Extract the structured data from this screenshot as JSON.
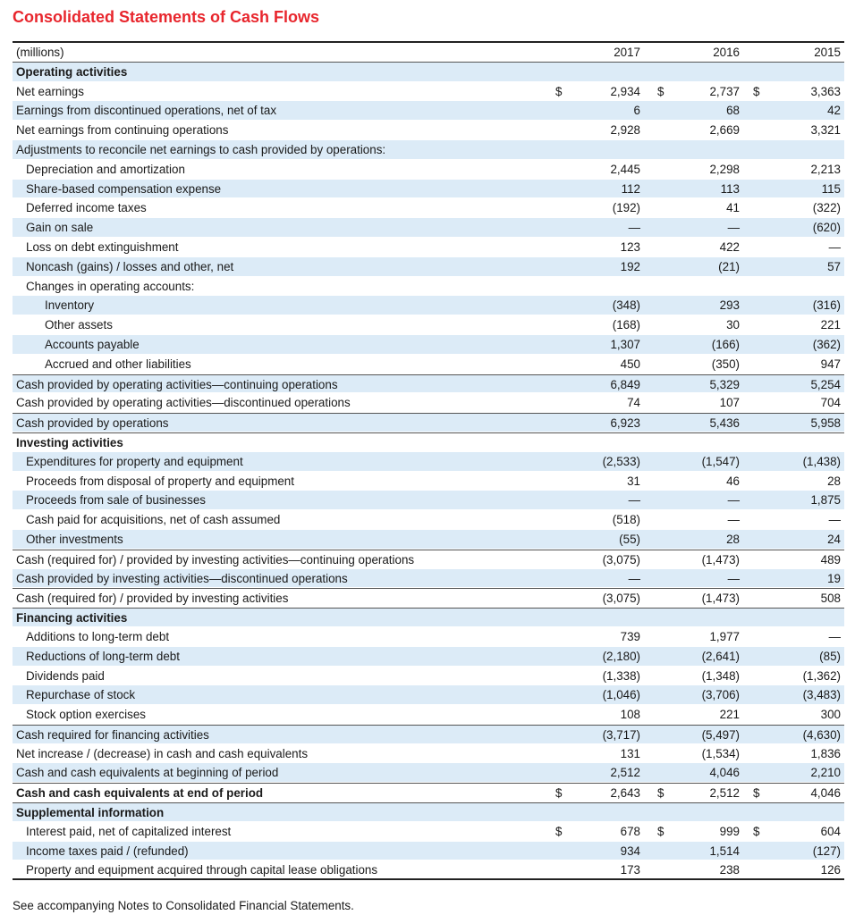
{
  "title": "Consolidated Statements of Cash Flows",
  "header": {
    "label": "(millions)",
    "years": [
      "2017",
      "2016",
      "2015"
    ]
  },
  "rows": [
    {
      "label": "Operating activities",
      "bold": true,
      "indent": 0,
      "values": [
        "",
        "",
        ""
      ]
    },
    {
      "label": "Net earnings",
      "indent": 0,
      "sym": [
        "$",
        "$",
        "$"
      ],
      "values": [
        "2,934",
        "2,737",
        "3,363"
      ]
    },
    {
      "label": "Earnings from discontinued operations, net of tax",
      "indent": 0,
      "values": [
        "6",
        "68",
        "42"
      ]
    },
    {
      "label": "Net earnings from continuing operations",
      "indent": 0,
      "values": [
        "2,928",
        "2,669",
        "3,321"
      ]
    },
    {
      "label": "Adjustments to reconcile net earnings to cash provided by operations:",
      "indent": 0,
      "values": [
        "",
        "",
        ""
      ]
    },
    {
      "label": "Depreciation and amortization",
      "indent": 1,
      "values": [
        "2,445",
        "2,298",
        "2,213"
      ]
    },
    {
      "label": "Share-based compensation expense",
      "indent": 1,
      "values": [
        "112",
        "113",
        "115"
      ]
    },
    {
      "label": "Deferred income taxes",
      "indent": 1,
      "values": [
        "(192)",
        "41",
        "(322)"
      ]
    },
    {
      "label": "Gain on sale",
      "indent": 1,
      "values": [
        "—",
        "—",
        "(620)"
      ]
    },
    {
      "label": "Loss on debt extinguishment",
      "indent": 1,
      "values": [
        "123",
        "422",
        "—"
      ]
    },
    {
      "label": "Noncash (gains) / losses and other, net",
      "indent": 1,
      "values": [
        "192",
        "(21)",
        "57"
      ]
    },
    {
      "label": "Changes in operating accounts:",
      "indent": 1,
      "values": [
        "",
        "",
        ""
      ]
    },
    {
      "label": "Inventory",
      "indent": 2,
      "values": [
        "(348)",
        "293",
        "(316)"
      ]
    },
    {
      "label": "Other assets",
      "indent": 2,
      "values": [
        "(168)",
        "30",
        "221"
      ]
    },
    {
      "label": "Accounts payable",
      "indent": 2,
      "values": [
        "1,307",
        "(166)",
        "(362)"
      ]
    },
    {
      "label": "Accrued and other liabilities",
      "indent": 2,
      "values": [
        "450",
        "(350)",
        "947"
      ]
    },
    {
      "label": "Cash provided by operating activities—continuing operations",
      "indent": 0,
      "rule": true,
      "values": [
        "6,849",
        "5,329",
        "5,254"
      ]
    },
    {
      "label": "Cash provided by operating activities—discontinued operations",
      "indent": 0,
      "values": [
        "74",
        "107",
        "704"
      ]
    },
    {
      "label": "Cash provided by operations",
      "indent": 0,
      "rule": true,
      "values": [
        "6,923",
        "5,436",
        "5,958"
      ]
    },
    {
      "label": "Investing activities",
      "bold": true,
      "indent": 0,
      "rule": true,
      "values": [
        "",
        "",
        ""
      ]
    },
    {
      "label": "Expenditures for property and equipment",
      "indent": 1,
      "values": [
        "(2,533)",
        "(1,547)",
        "(1,438)"
      ]
    },
    {
      "label": "Proceeds from disposal of property and equipment",
      "indent": 1,
      "values": [
        "31",
        "46",
        "28"
      ]
    },
    {
      "label": "Proceeds from sale of businesses",
      "indent": 1,
      "values": [
        "—",
        "—",
        "1,875"
      ]
    },
    {
      "label": "Cash paid for acquisitions, net of cash assumed",
      "indent": 1,
      "values": [
        "(518)",
        "—",
        "—"
      ]
    },
    {
      "label": "Other investments",
      "indent": 1,
      "values": [
        "(55)",
        "28",
        "24"
      ]
    },
    {
      "label": "Cash (required for) / provided by investing activities—continuing operations",
      "indent": 0,
      "rule": true,
      "values": [
        "(3,075)",
        "(1,473)",
        "489"
      ]
    },
    {
      "label": "Cash provided by investing activities—discontinued operations",
      "indent": 0,
      "values": [
        "—",
        "—",
        "19"
      ]
    },
    {
      "label": "Cash (required for) / provided by investing activities",
      "indent": 0,
      "rule": true,
      "values": [
        "(3,075)",
        "(1,473)",
        "508"
      ]
    },
    {
      "label": "Financing activities",
      "bold": true,
      "indent": 0,
      "rule": true,
      "values": [
        "",
        "",
        ""
      ]
    },
    {
      "label": "Additions to long-term debt",
      "indent": 1,
      "values": [
        "739",
        "1,977",
        "—"
      ]
    },
    {
      "label": "Reductions of long-term debt",
      "indent": 1,
      "values": [
        "(2,180)",
        "(2,641)",
        "(85)"
      ]
    },
    {
      "label": "Dividends paid",
      "indent": 1,
      "values": [
        "(1,338)",
        "(1,348)",
        "(1,362)"
      ]
    },
    {
      "label": "Repurchase of stock",
      "indent": 1,
      "values": [
        "(1,046)",
        "(3,706)",
        "(3,483)"
      ]
    },
    {
      "label": "Stock option exercises",
      "indent": 1,
      "values": [
        "108",
        "221",
        "300"
      ]
    },
    {
      "label": "Cash required for financing activities",
      "indent": 0,
      "rule": true,
      "values": [
        "(3,717)",
        "(5,497)",
        "(4,630)"
      ]
    },
    {
      "label": "Net increase / (decrease) in cash and cash equivalents",
      "indent": 0,
      "values": [
        "131",
        "(1,534)",
        "1,836"
      ]
    },
    {
      "label": "Cash and cash equivalents at beginning of period",
      "indent": 0,
      "values": [
        "2,512",
        "4,046",
        "2,210"
      ]
    },
    {
      "label": "Cash and cash equivalents at end of period",
      "bold": true,
      "indent": 0,
      "rule": true,
      "sym": [
        "$",
        "$",
        "$"
      ],
      "values": [
        "2,643",
        "2,512",
        "4,046"
      ]
    },
    {
      "label": "Supplemental information",
      "bold": true,
      "indent": 0,
      "rule": true,
      "values": [
        "",
        "",
        ""
      ]
    },
    {
      "label": "Interest paid, net of capitalized interest",
      "indent": 1,
      "sym": [
        "$",
        "$",
        "$"
      ],
      "values": [
        "678",
        "999",
        "604"
      ]
    },
    {
      "label": "Income taxes paid / (refunded)",
      "indent": 1,
      "values": [
        "934",
        "1,514",
        "(127)"
      ]
    },
    {
      "label": "Property and equipment acquired through capital lease obligations",
      "indent": 1,
      "values": [
        "173",
        "238",
        "126"
      ]
    }
  ],
  "footer": "See accompanying Notes to Consolidated Financial Statements."
}
